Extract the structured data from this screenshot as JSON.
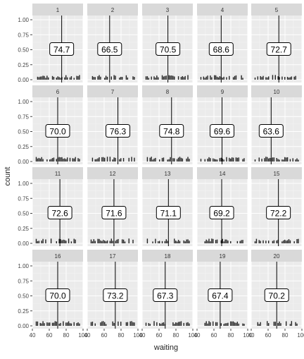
{
  "chart_data": {
    "type": "histogram",
    "facet_by": "sample",
    "xlabel": "waiting",
    "ylabel": "count",
    "xlim": [
      40,
      100
    ],
    "ylim": [
      0,
      1.0
    ],
    "x_ticks": [
      40,
      60,
      80,
      100
    ],
    "x_tick_labels": [
      "40",
      "60",
      "80",
      "100"
    ],
    "y_ticks": [
      0,
      0.25,
      0.5,
      0.75,
      1.0
    ],
    "y_tick_labels": [
      "0.00",
      "0.25",
      "0.50",
      "0.75",
      "1.00"
    ],
    "grid": true,
    "legend": "none",
    "colors": {
      "panel_bg": "#ebebeb",
      "strip_bg": "#d9d9d9",
      "grid": "#ffffff",
      "bars": "#222222",
      "mean_line": "#000000"
    },
    "facets": [
      {
        "label": "1",
        "mean": 74.7,
        "mean_label": "74.7"
      },
      {
        "label": "2",
        "mean": 66.5,
        "mean_label": "66.5"
      },
      {
        "label": "3",
        "mean": 70.5,
        "mean_label": "70.5"
      },
      {
        "label": "4",
        "mean": 68.6,
        "mean_label": "68.6"
      },
      {
        "label": "5",
        "mean": 72.7,
        "mean_label": "72.7"
      },
      {
        "label": "6",
        "mean": 70.0,
        "mean_label": "70.0"
      },
      {
        "label": "7",
        "mean": 76.3,
        "mean_label": "76.3"
      },
      {
        "label": "8",
        "mean": 74.8,
        "mean_label": "74.8"
      },
      {
        "label": "9",
        "mean": 69.6,
        "mean_label": "69.6"
      },
      {
        "label": "10",
        "mean": 63.6,
        "mean_label": "63.6"
      },
      {
        "label": "11",
        "mean": 72.6,
        "mean_label": "72.6"
      },
      {
        "label": "12",
        "mean": 71.6,
        "mean_label": "71.6"
      },
      {
        "label": "13",
        "mean": 71.1,
        "mean_label": "71.1"
      },
      {
        "label": "14",
        "mean": 69.2,
        "mean_label": "69.2"
      },
      {
        "label": "15",
        "mean": 72.2,
        "mean_label": "72.2"
      },
      {
        "label": "16",
        "mean": 70.0,
        "mean_label": "70.0"
      },
      {
        "label": "17",
        "mean": 73.2,
        "mean_label": "73.2"
      },
      {
        "label": "18",
        "mean": 67.3,
        "mean_label": "67.3"
      },
      {
        "label": "19",
        "mean": 67.4,
        "mean_label": "67.4"
      },
      {
        "label": "20",
        "mean": 70.2,
        "mean_label": "70.2"
      }
    ]
  }
}
